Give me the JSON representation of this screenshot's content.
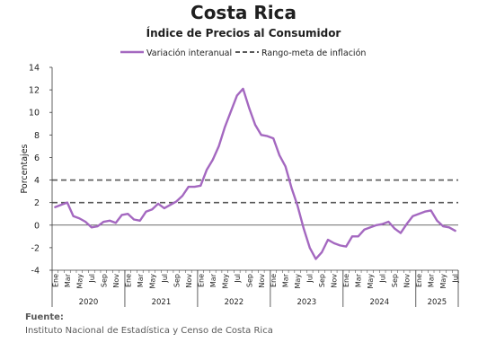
{
  "title": "Costa Rica",
  "subtitle": "Índice de Precios al Consumidor",
  "source_label": "Fuente:",
  "source_text": "Instituto Nacional de Estadística y Censo de Costa Rica",
  "colors": {
    "series": "#a468c0",
    "target_band": "#595959",
    "axis": "#3a3a3a",
    "grid": "#bfbfbf",
    "text": "#1f1f1f"
  },
  "chart_data": {
    "type": "line",
    "ylabel": "Porcentajes",
    "xlabel": "",
    "ylim": [
      -4,
      14
    ],
    "yticks": [
      "-4",
      "-2",
      "0",
      "2",
      "4",
      "6",
      "8",
      "10",
      "12",
      "14"
    ],
    "legend_position": "top",
    "month_ticks": [
      "Ene",
      "Mar",
      "May",
      "Jul",
      "Sep",
      "Nov",
      "Ene",
      "Mar",
      "May",
      "Jul",
      "Sep",
      "Nov",
      "Ene",
      "Mar",
      "May",
      "Jul",
      "Sep",
      "Nov",
      "Ene",
      "Mar",
      "May",
      "Jul",
      "Sep",
      "Nov",
      "Ene",
      "Mar",
      "May",
      "Jul",
      "Sep",
      "Nov",
      "Ene",
      "Mar",
      "May",
      "Jul"
    ],
    "years": [
      "2020",
      "2021",
      "2022",
      "2023",
      "2024",
      "2025"
    ],
    "x": [
      "2020-01",
      "2020-02",
      "2020-03",
      "2020-04",
      "2020-05",
      "2020-06",
      "2020-07",
      "2020-08",
      "2020-09",
      "2020-10",
      "2020-11",
      "2020-12",
      "2021-01",
      "2021-02",
      "2021-03",
      "2021-04",
      "2021-05",
      "2021-06",
      "2021-07",
      "2021-08",
      "2021-09",
      "2021-10",
      "2021-11",
      "2021-12",
      "2022-01",
      "2022-02",
      "2022-03",
      "2022-04",
      "2022-05",
      "2022-06",
      "2022-07",
      "2022-08",
      "2022-09",
      "2022-10",
      "2022-11",
      "2022-12",
      "2023-01",
      "2023-02",
      "2023-03",
      "2023-04",
      "2023-05",
      "2023-06",
      "2023-07",
      "2023-08",
      "2023-09",
      "2023-10",
      "2023-11",
      "2023-12",
      "2024-01",
      "2024-02",
      "2024-03",
      "2024-04",
      "2024-05",
      "2024-06",
      "2024-07",
      "2024-08",
      "2024-09",
      "2024-10",
      "2024-11",
      "2024-12",
      "2025-01",
      "2025-02",
      "2025-03",
      "2025-04",
      "2025-05",
      "2025-06",
      "2025-07"
    ],
    "series": [
      {
        "name": "Variación interanual",
        "values": [
          1.6,
          1.8,
          2.0,
          0.8,
          0.6,
          0.3,
          -0.2,
          -0.1,
          0.3,
          0.4,
          0.2,
          0.9,
          1.0,
          0.5,
          0.4,
          1.2,
          1.4,
          1.9,
          1.5,
          1.8,
          2.1,
          2.6,
          3.4,
          3.4,
          3.5,
          4.9,
          5.8,
          7.0,
          8.7,
          10.1,
          11.5,
          12.1,
          10.4,
          8.9,
          8.0,
          7.9,
          7.7,
          6.2,
          5.2,
          3.3,
          1.7,
          -0.3,
          -2.0,
          -3.0,
          -2.4,
          -1.3,
          -1.6,
          -1.8,
          -1.9,
          -1.0,
          -1.0,
          -0.4,
          -0.2,
          0.0,
          0.1,
          0.3,
          -0.3,
          -0.7,
          0.1,
          0.8,
          1.0,
          1.2,
          1.3,
          0.4,
          -0.1,
          -0.2,
          -0.5
        ]
      }
    ],
    "reference_lines": [
      {
        "name": "Rango-meta de inflación",
        "values": [
          2,
          4
        ]
      }
    ]
  }
}
